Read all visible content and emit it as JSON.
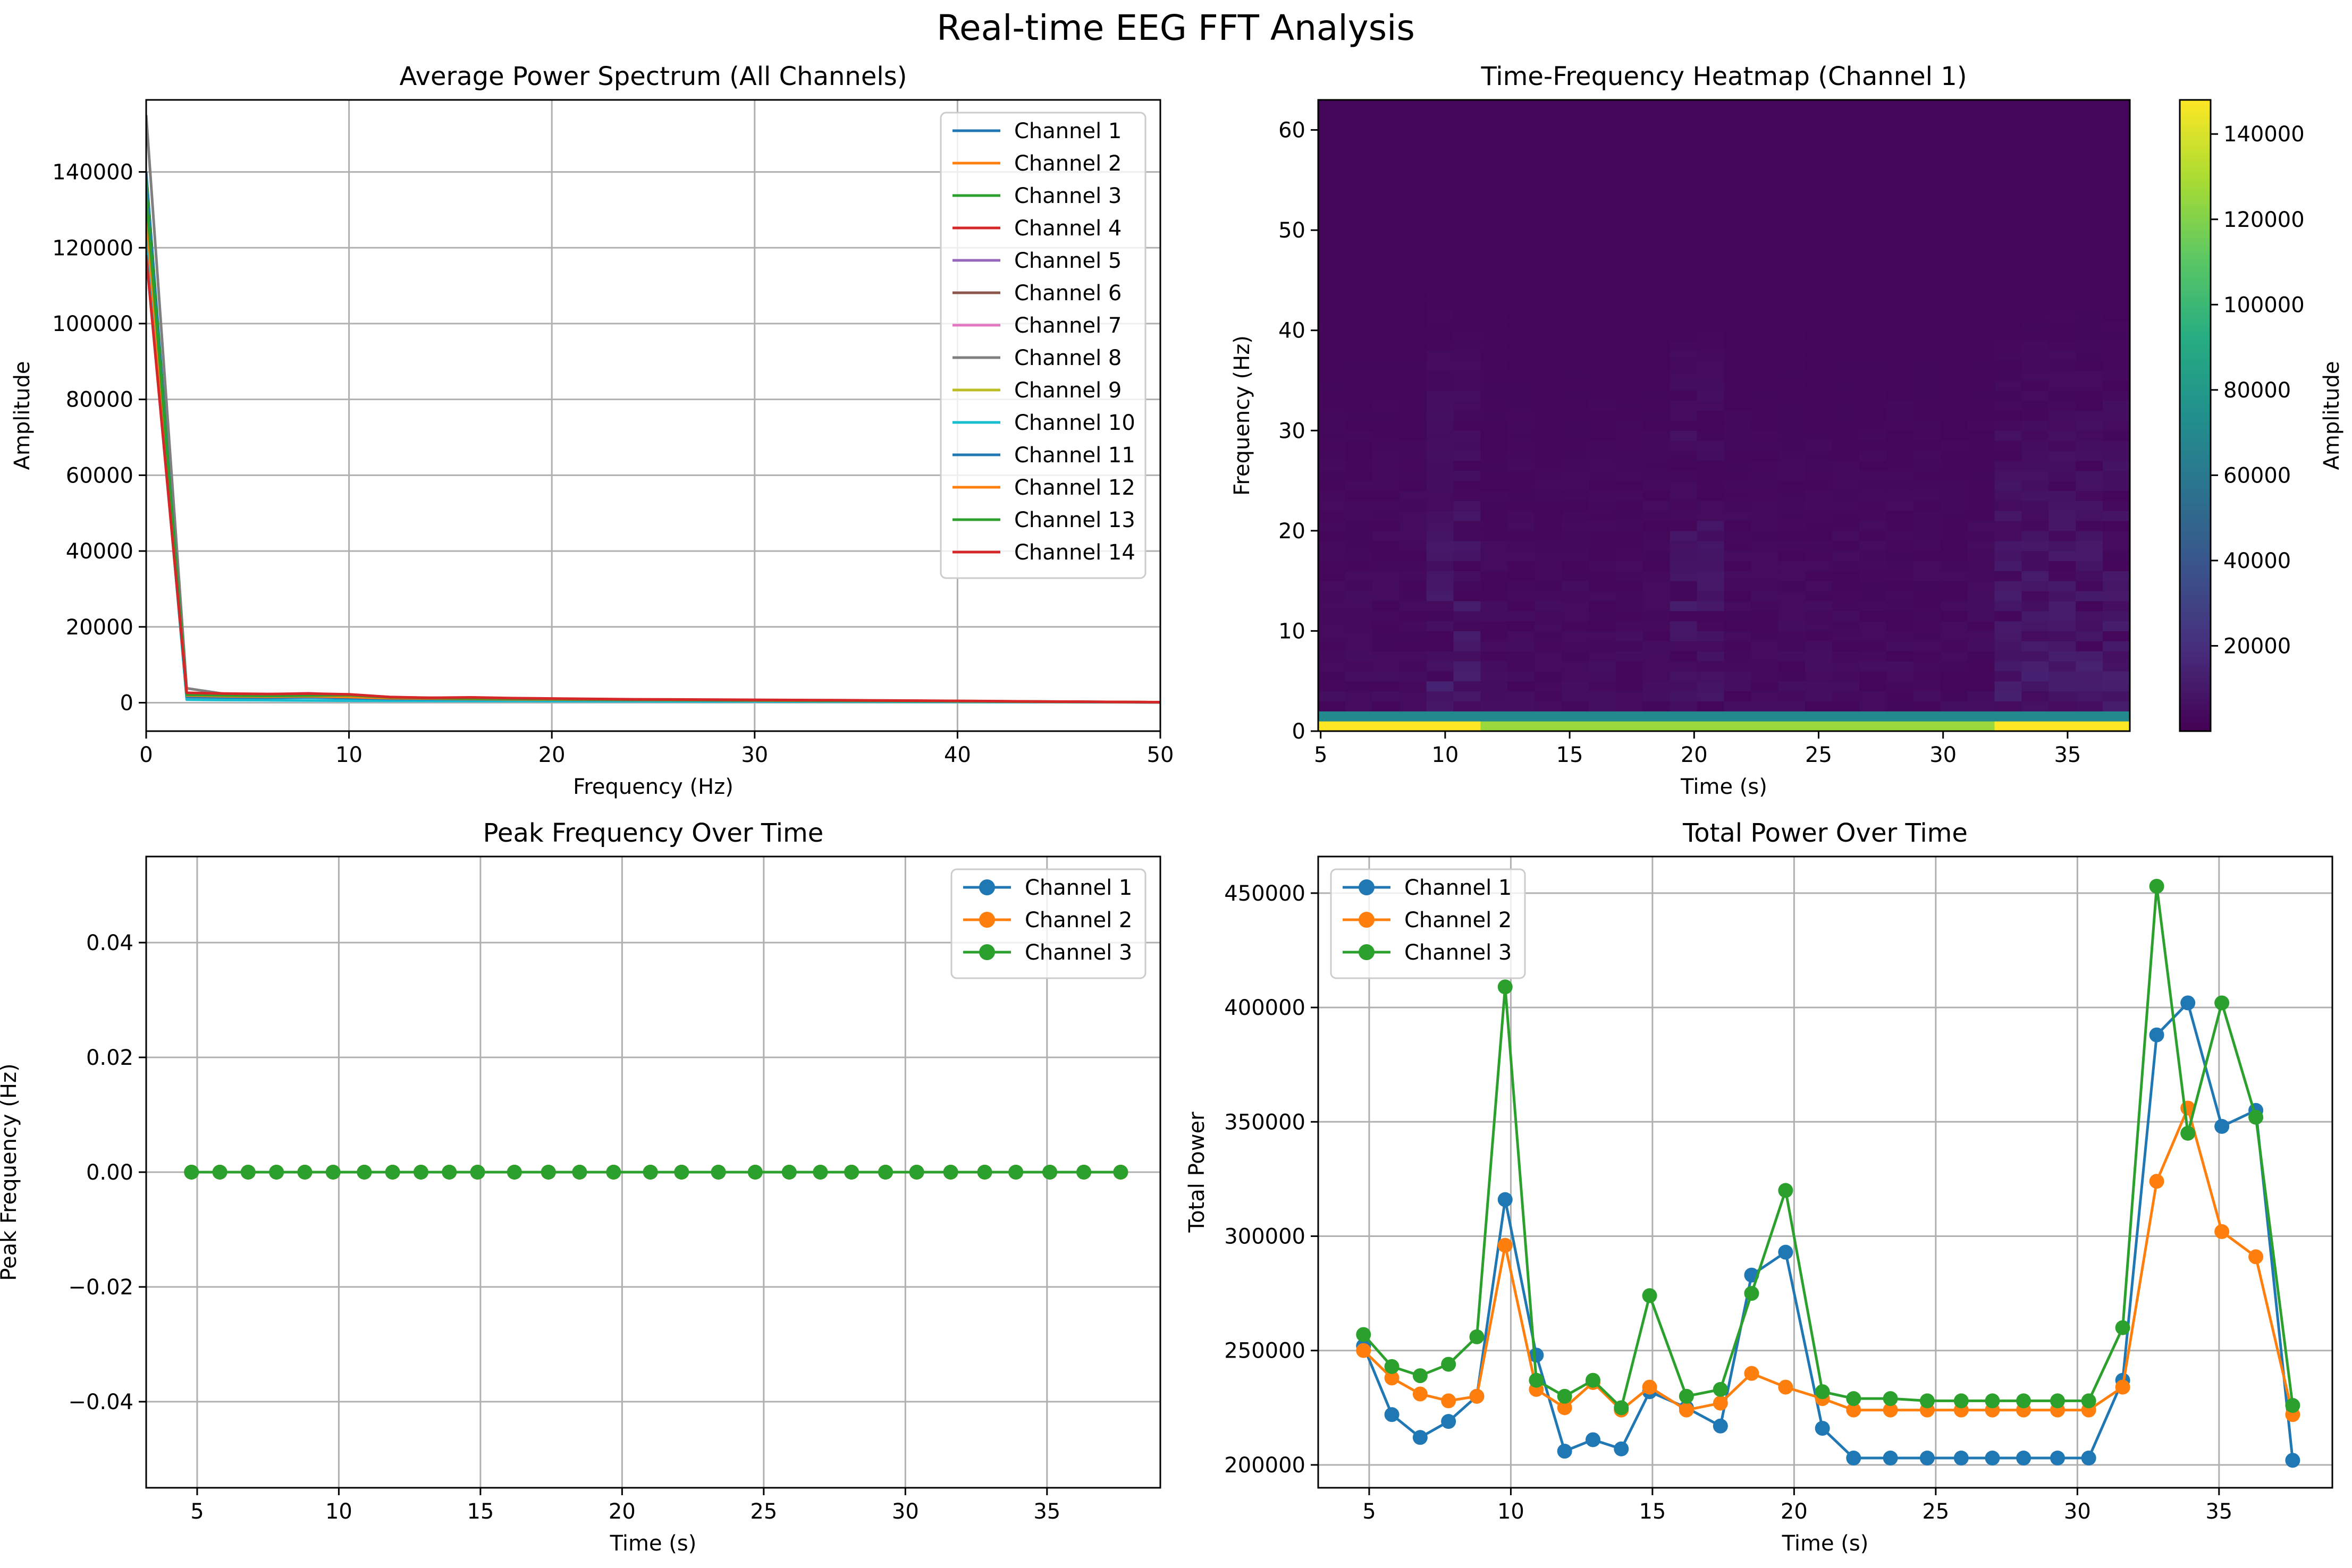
{
  "suptitle": "Real-time EEG FFT Analysis",
  "colors": {
    "tab10": [
      "#1f77b4",
      "#ff7f0e",
      "#2ca02c",
      "#d62728",
      "#9467bd",
      "#8c564b",
      "#e377c2",
      "#7f7f7f",
      "#bcbd22",
      "#17becf"
    ],
    "grid": "#b0b0b0"
  },
  "chart_data": [
    {
      "id": "spectrum",
      "type": "line",
      "title": "Average Power Spectrum (All Channels)",
      "xlabel": "Frequency (Hz)",
      "ylabel": "Amplitude",
      "xlim": [
        0,
        50
      ],
      "ylim": [
        -7500,
        159000
      ],
      "xticks": [
        0,
        10,
        20,
        30,
        40,
        50
      ],
      "yticks": [
        0,
        20000,
        40000,
        60000,
        80000,
        100000,
        120000,
        140000
      ],
      "ytick_labels": [
        "0",
        "20000",
        "40000",
        "60000",
        "80000",
        "100000",
        "120000",
        "140000"
      ],
      "grid": true,
      "legend_position": "top-right",
      "x": [
        0,
        2,
        4,
        6,
        8,
        10,
        12,
        14,
        16,
        18,
        20,
        22,
        24,
        26,
        28,
        30,
        32,
        34,
        36,
        38,
        40,
        42,
        44,
        46,
        48,
        50
      ],
      "series": [
        {
          "name": "Channel 1",
          "values": [
            140000,
            1500,
            1400,
            1300,
            1500,
            1200,
            1000,
            900,
            850,
            800,
            750,
            700,
            650,
            600,
            550,
            500,
            480,
            450,
            420,
            400,
            350,
            300,
            250,
            200,
            150,
            100
          ]
        },
        {
          "name": "Channel 2",
          "values": [
            130000,
            1800,
            1600,
            1500,
            1600,
            1400,
            1100,
            1000,
            900,
            850,
            800,
            750,
            700,
            650,
            600,
            550,
            500,
            480,
            450,
            420,
            380,
            320,
            260,
            210,
            160,
            110
          ]
        },
        {
          "name": "Channel 3",
          "values": [
            138000,
            2500,
            1800,
            1700,
            1800,
            1900,
            1300,
            1100,
            1000,
            950,
            900,
            800,
            750,
            700,
            650,
            600,
            550,
            520,
            480,
            450,
            400,
            340,
            280,
            220,
            170,
            120
          ]
        },
        {
          "name": "Channel 4",
          "values": [
            120000,
            2000,
            1900,
            1800,
            1900,
            1700,
            1200,
            1100,
            1000,
            950,
            850,
            750,
            700,
            650,
            600,
            550,
            500,
            480,
            450,
            420,
            380,
            320,
            260,
            210,
            160,
            110
          ]
        },
        {
          "name": "Channel 5",
          "values": [
            135000,
            1200,
            1300,
            1400,
            1800,
            1500,
            1000,
            900,
            800,
            750,
            700,
            650,
            600,
            550,
            500,
            480,
            450,
            420,
            400,
            380,
            340,
            290,
            240,
            190,
            140,
            100
          ]
        },
        {
          "name": "Channel 6",
          "values": [
            128000,
            2200,
            2000,
            1800,
            1700,
            1600,
            1300,
            1200,
            1100,
            1000,
            900,
            800,
            750,
            700,
            650,
            600,
            550,
            520,
            480,
            450,
            400,
            340,
            280,
            220,
            170,
            120
          ]
        },
        {
          "name": "Channel 7",
          "values": [
            125000,
            2400,
            2300,
            2200,
            2500,
            2000,
            1200,
            1100,
            1000,
            900,
            850,
            800,
            750,
            700,
            650,
            600,
            550,
            500,
            470,
            440,
            390,
            330,
            270,
            220,
            170,
            120
          ]
        },
        {
          "name": "Channel 8",
          "values": [
            155000,
            3800,
            2200,
            1900,
            1800,
            1600,
            1400,
            1300,
            1200,
            1100,
            1000,
            900,
            850,
            800,
            750,
            700,
            650,
            600,
            550,
            500,
            450,
            380,
            310,
            250,
            190,
            130
          ]
        },
        {
          "name": "Channel 9",
          "values": [
            132000,
            1700,
            1500,
            1400,
            1500,
            1300,
            1100,
            1000,
            900,
            850,
            800,
            750,
            700,
            650,
            600,
            550,
            500,
            470,
            440,
            410,
            370,
            310,
            250,
            200,
            150,
            100
          ]
        },
        {
          "name": "Channel 10",
          "values": [
            122000,
            800,
            700,
            650,
            600,
            550,
            500,
            480,
            450,
            430,
            400,
            380,
            360,
            340,
            320,
            300,
            280,
            260,
            240,
            220,
            200,
            180,
            160,
            140,
            120,
            100
          ]
        },
        {
          "name": "Channel 11",
          "values": [
            136000,
            1600,
            1400,
            1300,
            1400,
            1200,
            1000,
            950,
            900,
            850,
            800,
            750,
            700,
            650,
            600,
            550,
            500,
            470,
            440,
            410,
            370,
            310,
            250,
            200,
            150,
            100
          ]
        },
        {
          "name": "Channel 12",
          "values": [
            129000,
            1900,
            1700,
            1600,
            1700,
            1500,
            1200,
            1100,
            1000,
            900,
            850,
            800,
            750,
            700,
            650,
            600,
            550,
            500,
            470,
            440,
            390,
            330,
            270,
            220,
            170,
            120
          ]
        },
        {
          "name": "Channel 13",
          "values": [
            134000,
            2100,
            1900,
            1800,
            1900,
            2000,
            1400,
            1200,
            1100,
            1000,
            950,
            850,
            800,
            750,
            700,
            650,
            600,
            550,
            500,
            460,
            410,
            350,
            290,
            230,
            180,
            130
          ]
        },
        {
          "name": "Channel 14",
          "values": [
            118000,
            2600,
            2400,
            2300,
            2400,
            2200,
            1500,
            1300,
            1400,
            1200,
            1100,
            1000,
            900,
            850,
            800,
            750,
            700,
            650,
            600,
            550,
            480,
            400,
            320,
            260,
            200,
            140
          ]
        }
      ]
    },
    {
      "id": "heatmap",
      "type": "heatmap",
      "title": "Time-Frequency Heatmap (Channel 1)",
      "xlabel": "Time (s)",
      "ylabel": "Frequency (Hz)",
      "xlim": [
        4.9,
        37.5
      ],
      "ylim": [
        0,
        63
      ],
      "xticks": [
        5,
        10,
        15,
        20,
        25,
        30,
        35
      ],
      "yticks": [
        0,
        10,
        20,
        30,
        40,
        50,
        60
      ],
      "colormap": "viridis",
      "vmin": 0,
      "vmax": 148000,
      "colorbar_label": "Amplitude",
      "colorbar_ticks": [
        20000,
        40000,
        60000,
        80000,
        100000,
        120000,
        140000
      ],
      "time_bins": 30,
      "freq_bins": 63,
      "lowest_freq_row_amplitude": 140000,
      "second_freq_row_amplitude": 70000,
      "background_amplitude": 2000,
      "bright_time_ranges": [
        [
          4.9,
          11.3
        ],
        [
          32.2,
          37.5
        ]
      ],
      "active_time_ranges": [
        [
          9.5,
          11.5
        ],
        [
          19.5,
          21.5
        ],
        [
          32.0,
          37.5
        ]
      ]
    },
    {
      "id": "peak",
      "type": "line",
      "title": "Peak Frequency Over Time",
      "xlabel": "Time (s)",
      "ylabel": "Peak Frequency (Hz)",
      "xlim": [
        3.2,
        39.0
      ],
      "ylim": [
        -0.055,
        0.055
      ],
      "xticks": [
        5,
        10,
        15,
        20,
        25,
        30,
        35
      ],
      "yticks": [
        -0.04,
        -0.02,
        0.0,
        0.02,
        0.04
      ],
      "ytick_labels": [
        "−0.04",
        "−0.02",
        "0.00",
        "0.02",
        "0.04"
      ],
      "grid": true,
      "markers": true,
      "legend_position": "top-right",
      "x": [
        4.8,
        5.8,
        6.8,
        7.8,
        8.8,
        9.8,
        10.9,
        11.9,
        12.9,
        13.9,
        14.9,
        16.2,
        17.4,
        18.5,
        19.7,
        21.0,
        22.1,
        23.4,
        24.7,
        25.9,
        27.0,
        28.1,
        29.3,
        30.4,
        31.6,
        32.8,
        33.9,
        35.1,
        36.3,
        37.6
      ],
      "series": [
        {
          "name": "Channel 1",
          "values": [
            0,
            0,
            0,
            0,
            0,
            0,
            0,
            0,
            0,
            0,
            0,
            0,
            0,
            0,
            0,
            0,
            0,
            0,
            0,
            0,
            0,
            0,
            0,
            0,
            0,
            0,
            0,
            0,
            0,
            0
          ]
        },
        {
          "name": "Channel 2",
          "values": [
            0,
            0,
            0,
            0,
            0,
            0,
            0,
            0,
            0,
            0,
            0,
            0,
            0,
            0,
            0,
            0,
            0,
            0,
            0,
            0,
            0,
            0,
            0,
            0,
            0,
            0,
            0,
            0,
            0,
            0
          ]
        },
        {
          "name": "Channel 3",
          "values": [
            0,
            0,
            0,
            0,
            0,
            0,
            0,
            0,
            0,
            0,
            0,
            0,
            0,
            0,
            0,
            0,
            0,
            0,
            0,
            0,
            0,
            0,
            0,
            0,
            0,
            0,
            0,
            0,
            0,
            0
          ]
        }
      ]
    },
    {
      "id": "power",
      "type": "line",
      "title": "Total Power Over Time",
      "xlabel": "Time (s)",
      "ylabel": "Total Power",
      "xlim": [
        3.2,
        39.0
      ],
      "ylim": [
        190000,
        466000
      ],
      "xticks": [
        5,
        10,
        15,
        20,
        25,
        30,
        35
      ],
      "yticks": [
        200000,
        250000,
        300000,
        350000,
        400000,
        450000
      ],
      "ytick_labels": [
        "200000",
        "250000",
        "300000",
        "350000",
        "400000",
        "450000"
      ],
      "grid": true,
      "markers": true,
      "legend_position": "top-left",
      "x": [
        4.8,
        5.8,
        6.8,
        7.8,
        8.8,
        9.8,
        10.9,
        11.9,
        12.9,
        13.9,
        14.9,
        16.2,
        17.4,
        18.5,
        19.7,
        21.0,
        22.1,
        23.4,
        24.7,
        25.9,
        27.0,
        28.1,
        29.3,
        30.4,
        31.6,
        32.8,
        33.9,
        35.1,
        36.3,
        37.6
      ],
      "series": [
        {
          "name": "Channel 1",
          "values": [
            252000,
            222000,
            212000,
            219000,
            230000,
            316000,
            248000,
            206000,
            211000,
            207000,
            232000,
            225000,
            217000,
            283000,
            293000,
            216000,
            203000,
            203000,
            203000,
            203000,
            203000,
            203000,
            203000,
            203000,
            237000,
            388000,
            402000,
            348000,
            355000,
            202000
          ]
        },
        {
          "name": "Channel 2",
          "values": [
            250000,
            238000,
            231000,
            228000,
            230000,
            296000,
            233000,
            225000,
            236000,
            224000,
            234000,
            224000,
            227000,
            240000,
            234000,
            229000,
            224000,
            224000,
            224000,
            224000,
            224000,
            224000,
            224000,
            224000,
            234000,
            324000,
            356000,
            302000,
            291000,
            222000
          ]
        },
        {
          "name": "Channel 3",
          "values": [
            257000,
            243000,
            239000,
            244000,
            256000,
            409000,
            237000,
            230000,
            237000,
            225000,
            274000,
            230000,
            233000,
            275000,
            320000,
            232000,
            229000,
            229000,
            228000,
            228000,
            228000,
            228000,
            228000,
            228000,
            260000,
            453000,
            345000,
            402000,
            352000,
            226000
          ]
        }
      ]
    }
  ]
}
